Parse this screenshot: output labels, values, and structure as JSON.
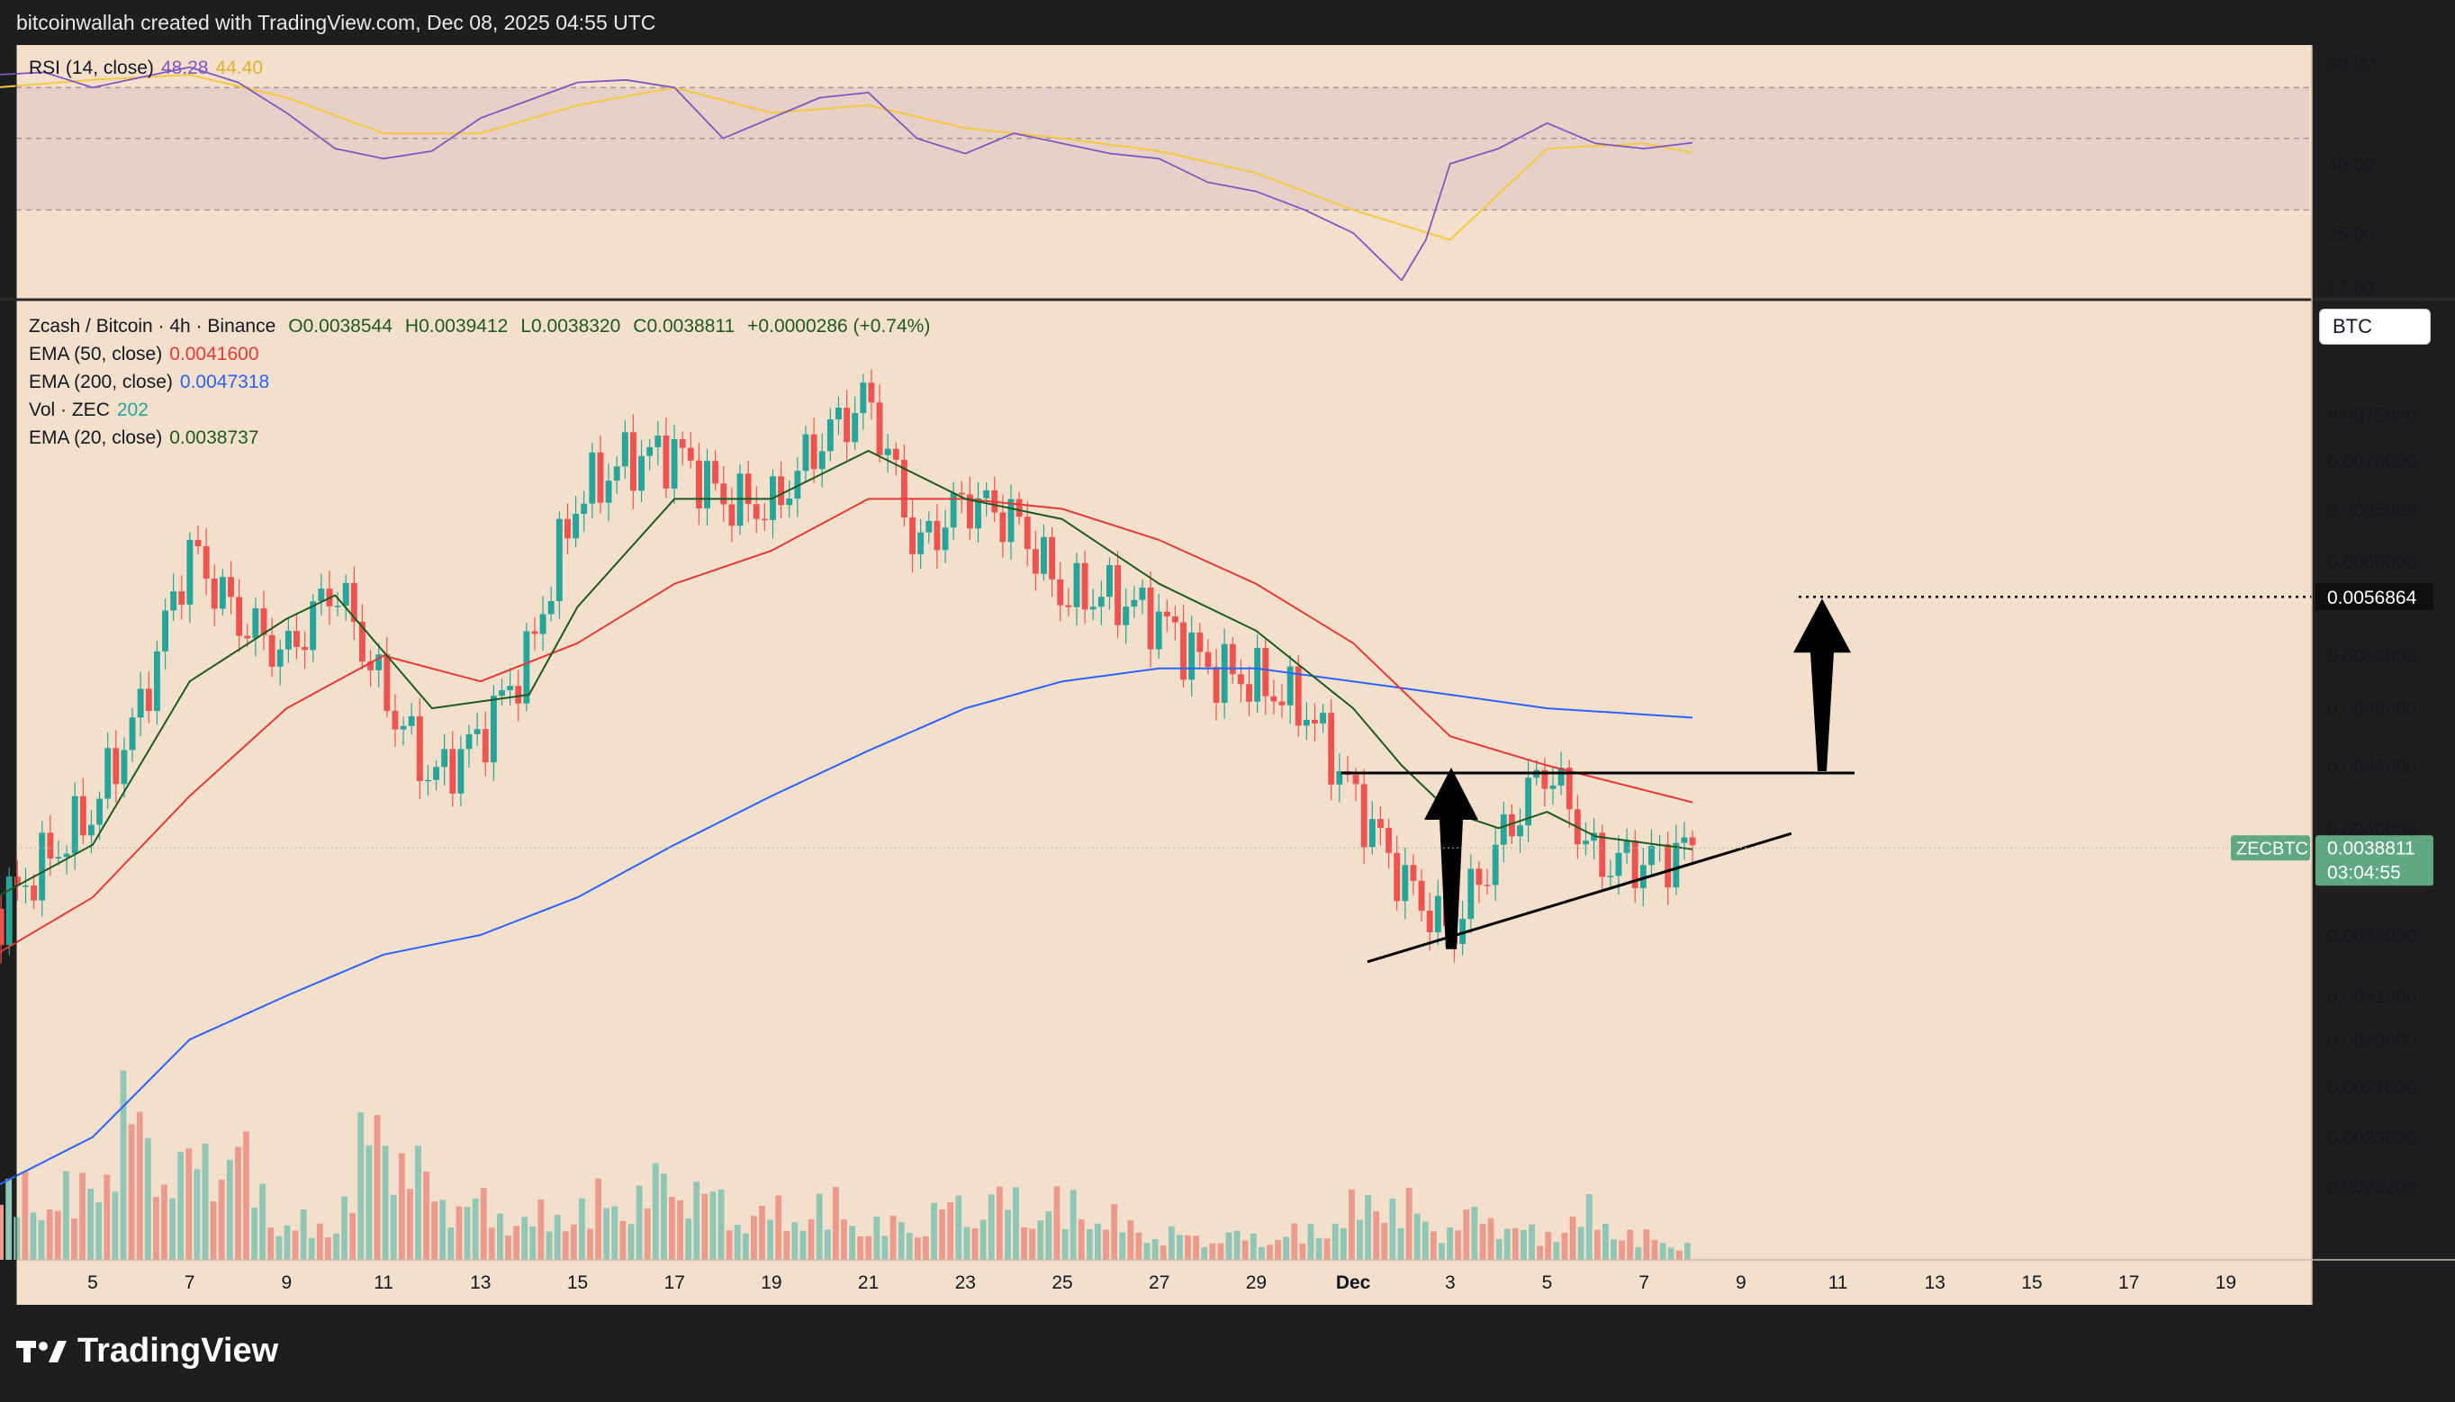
{
  "header": {
    "attribution": "bitcoinwallah created with TradingView.com, Dec 08, 2025 04:55 UTC"
  },
  "brand": {
    "name": "TradingView"
  },
  "colors": {
    "background": "#f3e0cc",
    "up": "#26a69a",
    "down": "#ef5350",
    "ema20": "#1e5a1e",
    "ema50": "#e53935",
    "ema200": "#2962ff",
    "rsi": "#7e57c2",
    "rsi_ma": "#f6c83e",
    "price_tag": "#5fa882"
  },
  "rsi_panel": {
    "label": "RSI (14, close)",
    "value1": "48.28",
    "value2": "44.40",
    "ticks": [
      "80.00",
      "40.00",
      "25.00",
      "17.00"
    ]
  },
  "main_panel": {
    "symbol_line": "Zcash / Bitcoin · 4h · Binance",
    "ohlc": {
      "open": "O0.0038544",
      "high": "H0.0039412",
      "low": "L0.0038320",
      "close": "C0.0038811",
      "change": "+0.0000286 (+0.74%)"
    },
    "indicators": [
      {
        "label": "EMA (50, close)",
        "value": "0.0041600",
        "color": "#e53935"
      },
      {
        "label": "EMA (200, close)",
        "value": "0.0047318",
        "color": "#2962ff"
      },
      {
        "label": "Vol · ZEC",
        "value": "202",
        "color": "#26a69a"
      },
      {
        "label": "EMA (20, close)",
        "value": "0.0038737",
        "color": "#1e5a1e"
      }
    ],
    "currency_button": "BTC",
    "target_label": "0.0056864",
    "price_tag": {
      "symbol": "ZECBTC",
      "price": "0.0038811",
      "countdown": "03:04:55"
    },
    "y_ticks": [
      "0.0075000",
      "0.0070000",
      "0.0065000",
      "0.0060000",
      "0.0052000",
      "0.0048000",
      "0.0044000",
      "0.0040000",
      "0.0034000",
      "0.0031000",
      "0.0029000",
      "0.0027000",
      "0.0025000",
      "0.0023200"
    ],
    "x_ticks": [
      "5",
      "7",
      "9",
      "11",
      "13",
      "15",
      "17",
      "19",
      "21",
      "23",
      "25",
      "27",
      "29",
      "Dec",
      "3",
      "5",
      "7",
      "9",
      "11",
      "13",
      "15",
      "17",
      "19"
    ]
  },
  "chart_data": {
    "type": "candlestick",
    "symbol": "ZECBTC",
    "interval": "4h",
    "last_close": 0.0038811,
    "ema50_last": 0.00416,
    "ema200_last": 0.0047318,
    "ema20_last": 0.0038737,
    "volume_last": 202,
    "rsi_last": 48.28,
    "rsi_ma_last": 44.4,
    "price_path": [
      [
        "Nov 3",
        0.0035
      ],
      [
        "Nov 4",
        0.0038
      ],
      [
        "Nov 5",
        0.0041
      ],
      [
        "Nov 6",
        0.0048
      ],
      [
        "Nov 7",
        0.0061
      ],
      [
        "Nov 8",
        0.0055
      ],
      [
        "Nov 9",
        0.0052
      ],
      [
        "Nov 10",
        0.0058
      ],
      [
        "Nov 11",
        0.0049
      ],
      [
        "Nov 12",
        0.0043
      ],
      [
        "Nov 13",
        0.0046
      ],
      [
        "Nov 14",
        0.0052
      ],
      [
        "Nov 15",
        0.0066
      ],
      [
        "Nov 16",
        0.007
      ],
      [
        "Nov 17",
        0.0071
      ],
      [
        "Nov 18",
        0.0066
      ],
      [
        "Nov 19",
        0.0065
      ],
      [
        "Nov 20",
        0.0072
      ],
      [
        "Nov 21",
        0.0077
      ],
      [
        "Nov 22",
        0.0061
      ],
      [
        "Nov 23",
        0.0066
      ],
      [
        "Nov 24",
        0.0064
      ],
      [
        "Nov 25",
        0.0057
      ],
      [
        "Nov 26",
        0.0057
      ],
      [
        "Nov 27",
        0.0055
      ],
      [
        "Nov 28",
        0.0051
      ],
      [
        "Nov 29",
        0.005
      ],
      [
        "Nov 30",
        0.0048
      ],
      [
        "Dec 1",
        0.0042
      ],
      [
        "Dec 2",
        0.0037
      ],
      [
        "Dec 3",
        0.0034
      ],
      [
        "Dec 4",
        0.0039
      ],
      [
        "Dec 5",
        0.0044
      ],
      [
        "Dec 6",
        0.0038
      ],
      [
        "Dec 7",
        0.0038
      ],
      [
        "Dec 8",
        0.00388
      ]
    ],
    "ema20": [
      [
        "Nov 3",
        0.0036
      ],
      [
        "Nov 5",
        0.0039
      ],
      [
        "Nov 7",
        0.005
      ],
      [
        "Nov 9",
        0.0055
      ],
      [
        "Nov 10",
        0.0057
      ],
      [
        "Nov 12",
        0.0048
      ],
      [
        "Nov 14",
        0.0049
      ],
      [
        "Nov 15",
        0.0056
      ],
      [
        "Nov 17",
        0.0066
      ],
      [
        "Nov 19",
        0.0066
      ],
      [
        "Nov 21",
        0.0071
      ],
      [
        "Nov 23",
        0.0066
      ],
      [
        "Nov 25",
        0.0064
      ],
      [
        "Nov 27",
        0.0058
      ],
      [
        "Nov 29",
        0.0054
      ],
      [
        "Dec 1",
        0.0048
      ],
      [
        "Dec 2",
        0.0044
      ],
      [
        "Dec 3",
        0.0041
      ],
      [
        "Dec 4",
        0.004
      ],
      [
        "Dec 5",
        0.0041
      ],
      [
        "Dec 6",
        0.00395
      ],
      [
        "Dec 8",
        0.0038737
      ]
    ],
    "ema50": [
      [
        "Nov 3",
        0.0033
      ],
      [
        "Nov 5",
        0.0036
      ],
      [
        "Nov 7",
        0.0042
      ],
      [
        "Nov 9",
        0.0048
      ],
      [
        "Nov 11",
        0.0052
      ],
      [
        "Nov 13",
        0.005
      ],
      [
        "Nov 15",
        0.0053
      ],
      [
        "Nov 17",
        0.0058
      ],
      [
        "Nov 19",
        0.0061
      ],
      [
        "Nov 21",
        0.0066
      ],
      [
        "Nov 23",
        0.0066
      ],
      [
        "Nov 25",
        0.0065
      ],
      [
        "Nov 27",
        0.0062
      ],
      [
        "Nov 29",
        0.0058
      ],
      [
        "Dec 1",
        0.0053
      ],
      [
        "Dec 3",
        0.0046
      ],
      [
        "Dec 5",
        0.0044
      ],
      [
        "Dec 8",
        0.00416
      ]
    ],
    "ema200": [
      [
        "Nov 3",
        0.00232
      ],
      [
        "Nov 5",
        0.0025
      ],
      [
        "Nov 7",
        0.0029
      ],
      [
        "Nov 9",
        0.0031
      ],
      [
        "Nov 11",
        0.0033
      ],
      [
        "Nov 13",
        0.0034
      ],
      [
        "Nov 15",
        0.0036
      ],
      [
        "Nov 17",
        0.0039
      ],
      [
        "Nov 19",
        0.0042
      ],
      [
        "Nov 21",
        0.0045
      ],
      [
        "Nov 23",
        0.0048
      ],
      [
        "Nov 25",
        0.005
      ],
      [
        "Nov 27",
        0.0051
      ],
      [
        "Nov 29",
        0.0051
      ],
      [
        "Dec 1",
        0.005
      ],
      [
        "Dec 3",
        0.0049
      ],
      [
        "Dec 5",
        0.0048
      ],
      [
        "Dec 8",
        0.0047318
      ]
    ],
    "rsi": [
      [
        "Nov 3",
        75
      ],
      [
        "Nov 4",
        76
      ],
      [
        "Nov 5",
        70
      ],
      [
        "Nov 6",
        74
      ],
      [
        "Nov 7",
        78
      ],
      [
        "Nov 8",
        72
      ],
      [
        "Nov 9",
        60
      ],
      [
        "Nov 10",
        46
      ],
      [
        "Nov 11",
        42
      ],
      [
        "Nov 12",
        45
      ],
      [
        "Nov 13",
        58
      ],
      [
        "Nov 15",
        72
      ],
      [
        "Nov 16",
        73
      ],
      [
        "Nov 17",
        70
      ],
      [
        "Nov 18",
        50
      ],
      [
        "Nov 19",
        58
      ],
      [
        "Nov 20",
        66
      ],
      [
        "Nov 21",
        68
      ],
      [
        "Nov 22",
        50
      ],
      [
        "Nov 23",
        44
      ],
      [
        "Nov 24",
        52
      ],
      [
        "Nov 25",
        48
      ],
      [
        "Nov 26",
        44
      ],
      [
        "Nov 27",
        42
      ],
      [
        "Nov 28",
        36
      ],
      [
        "Nov 29",
        34
      ],
      [
        "Nov 30",
        30
      ],
      [
        "Dec 1",
        25
      ],
      [
        "Dec 2",
        18
      ],
      [
        "Dec 2.5",
        24
      ],
      [
        "Dec 3",
        40
      ],
      [
        "Dec 4",
        46
      ],
      [
        "Dec 5",
        56
      ],
      [
        "Dec 6",
        48
      ],
      [
        "Dec 7",
        46
      ],
      [
        "Dec 8",
        48.28
      ]
    ],
    "rsi_ma": [
      [
        "Nov 3",
        70
      ],
      [
        "Nov 5",
        73
      ],
      [
        "Nov 7",
        75
      ],
      [
        "Nov 9",
        66
      ],
      [
        "Nov 11",
        52
      ],
      [
        "Nov 13",
        52
      ],
      [
        "Nov 15",
        63
      ],
      [
        "Nov 17",
        70
      ],
      [
        "Nov 19",
        60
      ],
      [
        "Nov 21",
        63
      ],
      [
        "Nov 23",
        54
      ],
      [
        "Nov 25",
        50
      ],
      [
        "Nov 27",
        45
      ],
      [
        "Nov 29",
        38
      ],
      [
        "Dec 1",
        30
      ],
      [
        "Dec 3",
        24
      ],
      [
        "Dec 5",
        46
      ],
      [
        "Dec 7",
        48
      ],
      [
        "Dec 8",
        44.4
      ]
    ],
    "volume_profile": [
      0.2,
      0.3,
      0.45,
      0.4,
      0.95,
      0.55,
      0.8,
      0.25,
      0.2,
      0.95,
      0.45,
      0.35,
      0.25,
      0.35,
      0.4,
      0.55,
      0.3,
      0.3,
      0.35,
      0.2,
      0.3,
      0.4,
      0.35,
      0.35,
      0.2,
      0.15,
      0.15,
      0.15,
      0.25,
      0.45,
      0.2,
      0.3,
      0.15,
      0.3,
      0.15,
      0.1
    ],
    "annotations": {
      "resistance_level": 0.00435,
      "support_line": {
        "from": [
          "Dec 2",
          0.0033
        ],
        "to": [
          "Dec 10",
          0.004
        ]
      },
      "breakout_target": 0.0056864
    },
    "rsi_levels": {
      "upper": 70,
      "middle": 50,
      "lower": 30
    }
  }
}
